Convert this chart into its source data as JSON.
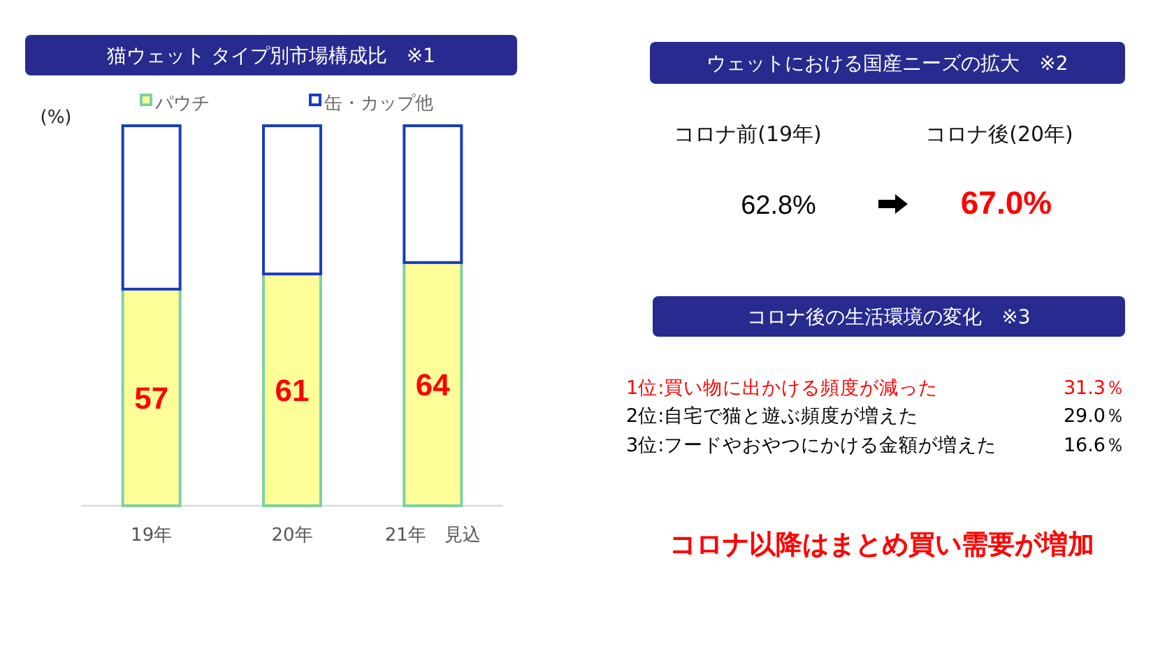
{
  "chart_data": [
    {
      "type": "bar",
      "title": "猫ウェット タイプ別市場構成比　※1",
      "ylabel": "(%)",
      "categories": [
        "19年",
        "20年",
        "21年　見込"
      ],
      "stacked": true,
      "ylim": [
        0,
        100
      ],
      "tick_labels": "x",
      "legend": "top",
      "series": [
        {
          "name": "パウチ",
          "color": "#ffff99",
          "values": [
            57,
            61,
            64
          ],
          "value_labels": [
            "57",
            "61",
            "64"
          ]
        },
        {
          "name": "缶・カップ他",
          "color": "#ffffff",
          "values": [
            43,
            39,
            36
          ]
        }
      ]
    },
    {
      "type": "other",
      "title": "ウェットにおける国産ニーズの拡大　※2",
      "categories": [
        "コロナ前(19年)",
        "コロナ後(20年)"
      ],
      "values": [
        62.8,
        67.0
      ],
      "value_labels": [
        "62.8%",
        "67.0%"
      ],
      "colors": [
        "#000000",
        "#ff0000"
      ]
    },
    {
      "type": "other",
      "title": "コロナ後の生活環境の変化　※3",
      "categories": [
        "1位:買い物に出かける頻度が減った",
        "2位:自宅で猫と遊ぶ頻度が増えた",
        "3位:フードやおやつにかける金額が増えた"
      ],
      "values": [
        31.3,
        29.0,
        16.6
      ],
      "value_labels": [
        "31.3％",
        "29.0％",
        "16.6％"
      ],
      "colors": [
        "#ff0000",
        "#000000",
        "#000000"
      ],
      "annotations": [
        "コロナ以降はまとめ買い需要が増加"
      ]
    }
  ]
}
